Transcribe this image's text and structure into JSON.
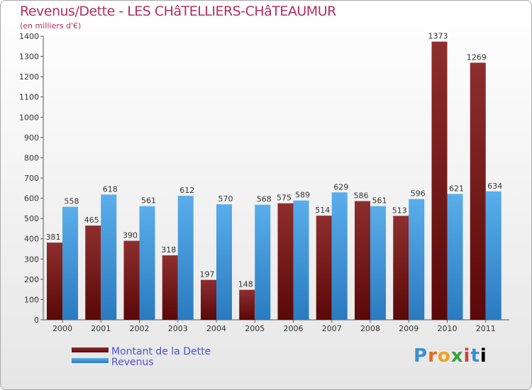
{
  "chart_data": {
    "type": "bar",
    "title": "Revenus/Dette - LES CHâTELLIERS-CHâTEAUMUR",
    "subtitle": "(en milliers d'€)",
    "categories": [
      "2000",
      "2001",
      "2002",
      "2003",
      "2004",
      "2005",
      "2006",
      "2007",
      "2008",
      "2009",
      "2010",
      "2011"
    ],
    "series": [
      {
        "name": "Montant de la Dette",
        "color": "#7a1a1a",
        "values": [
          381,
          465,
          390,
          318,
          197,
          148,
          575,
          514,
          586,
          513,
          1373,
          1269
        ]
      },
      {
        "name": "Revenus",
        "color": "#4a9fe0",
        "values": [
          558,
          618,
          561,
          612,
          570,
          568,
          589,
          629,
          561,
          596,
          621,
          634
        ]
      }
    ],
    "ylim": [
      0,
      1400
    ],
    "yticks": [
      0,
      100,
      200,
      300,
      400,
      500,
      600,
      700,
      800,
      900,
      1000,
      1100,
      1200,
      1300,
      1400
    ],
    "xlabel": "",
    "ylabel": "",
    "grid": false,
    "legend": "bottom-left"
  },
  "logo": {
    "letters": [
      "P",
      "r",
      "o",
      "x",
      "i",
      "t",
      "i"
    ]
  }
}
